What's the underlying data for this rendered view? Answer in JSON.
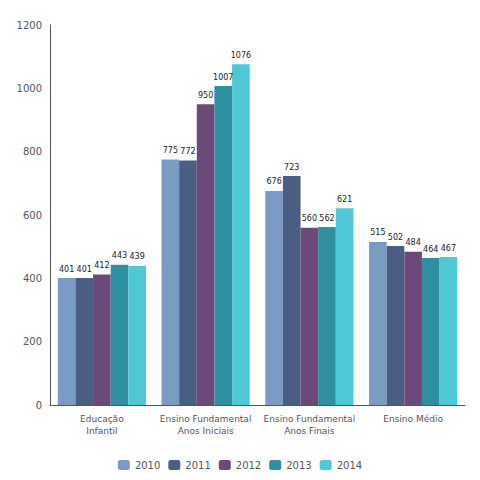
{
  "chart_data": {
    "type": "bar",
    "categories": [
      "Educação\nInfantil",
      "Ensino Fundamental\nAnos Iniciais",
      "Ensino Fundamental\nAnos Finais",
      "Ensino Médio"
    ],
    "series": [
      {
        "name": "2010",
        "color": "#7a9cc4",
        "values": [
          401,
          775,
          676,
          515
        ]
      },
      {
        "name": "2011",
        "color": "#4a5e82",
        "values": [
          401,
          772,
          723,
          502
        ]
      },
      {
        "name": "2012",
        "color": "#6b4a7a",
        "values": [
          412,
          950,
          560,
          484
        ]
      },
      {
        "name": "2013",
        "color": "#2e8fa0",
        "values": [
          443,
          1007,
          562,
          464
        ]
      },
      {
        "name": "2014",
        "color": "#4dc8d4",
        "values": [
          439,
          1076,
          621,
          467
        ]
      }
    ],
    "ylim": [
      0,
      1200
    ],
    "yticks": [
      0,
      200,
      400,
      600,
      800,
      1000,
      1200
    ],
    "grid": false,
    "legend": "bottom",
    "data_labels": true
  }
}
